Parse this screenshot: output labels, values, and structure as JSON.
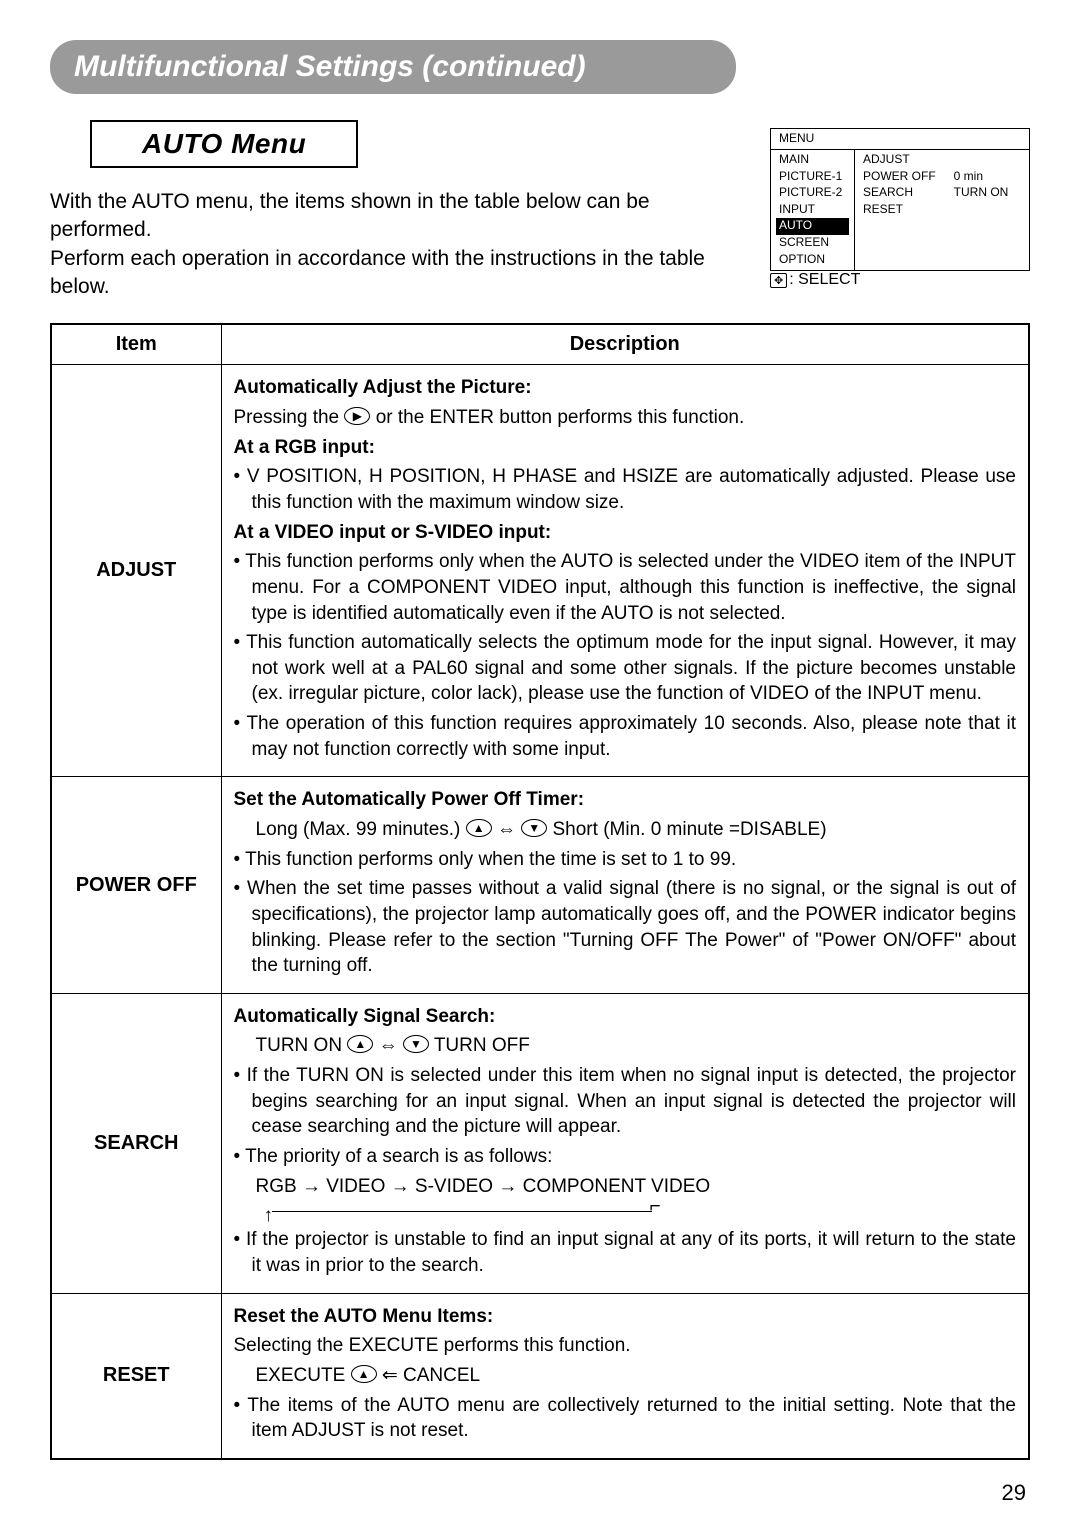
{
  "banner_title": "Multifunctional Settings (continued)",
  "section_title": "AUTO Menu",
  "intro_p1": "With the AUTO menu, the items shown in the table below can be performed.",
  "intro_p2": "Perform each operation in accordance with the instructions in the table below.",
  "menu_diagram": {
    "header": "MENU",
    "left_items": [
      "MAIN",
      "PICTURE-1",
      "PICTURE-2",
      "INPUT",
      "AUTO",
      "SCREEN",
      "OPTION"
    ],
    "left_selected_index": 4,
    "right_col1": [
      "ADJUST",
      "POWER OFF",
      "SEARCH",
      "RESET"
    ],
    "right_col2": [
      "",
      "0 min",
      "TURN ON",
      ""
    ],
    "footer_icon": "✥",
    "footer_text": ": SELECT"
  },
  "table": {
    "headers": [
      "Item",
      "Description"
    ],
    "rows": [
      {
        "item": "ADJUST",
        "title": "Automatically Adjust the Picture:",
        "line1_pre": "Pressing the ",
        "line1_btn": "▶",
        "line1_post": " or the ENTER button performs this function.",
        "sub1_title": "At a RGB input:",
        "sub1_bullet": "V POSITION, H POSITION, H PHASE and HSIZE are automatically adjusted. Please use this function with the maximum window size.",
        "sub2_title": "At a VIDEO input or S-VIDEO input:",
        "sub2_b1": "This function performs only when the AUTO is selected under the VIDEO item of the INPUT menu. For a COMPONENT VIDEO input, although this function is ineffective, the signal type is identified automatically even if the AUTO is not selected.",
        "sub2_b2": "This function automatically selects the optimum mode for the input signal. However, it may not work well at a PAL60 signal and some other signals. If the picture becomes unstable (ex. irregular picture, color lack), please use the function of VIDEO of the INPUT menu.",
        "sub2_b3": "The operation of this function requires approximately 10 seconds. Also, please note that it may not function correctly with some input."
      },
      {
        "item": "POWER OFF",
        "title": "Set the Automatically Power Off Timer:",
        "slider_pre": "Long (Max. 99 minutes.) ",
        "slider_btn_up": "▲",
        "slider_sep": " ⇔ ",
        "slider_btn_dn": "▼",
        "slider_post": " Short (Min. 0 minute =DISABLE)",
        "b1": "This function performs only when the time is set to 1 to 99.",
        "b2": "When the set time passes without a valid signal (there is no signal, or the signal is out of specifications), the projector lamp automatically goes off, and the POWER indicator begins blinking. Please refer to the section \"Turning OFF The Power\" of \"Power ON/OFF\" about the turning off."
      },
      {
        "item": "SEARCH",
        "title": "Automatically Signal Search:",
        "toggle_pre": "TURN ON ",
        "toggle_btn_up": "▲",
        "toggle_sep": " ⇔ ",
        "toggle_btn_dn": "▼",
        "toggle_post": " TURN OFF",
        "b1": "If the TURN ON is selected under this item when no signal input is detected, the projector begins searching for an input signal. When an input signal is detected the projector will cease searching and the picture will appear.",
        "b2_lead": "The priority of a search is as follows:",
        "priority_chain": "RGB → VIDEO → S-VIDEO → COMPONENT VIDEO",
        "b3": "If the projector is unstable to find an input signal at any of its ports, it will return to the state it was in prior to the search."
      },
      {
        "item": "RESET",
        "title": "Reset the AUTO Menu Items:",
        "line1": "Selecting the EXECUTE performs this function.",
        "exec_pre": "EXECUTE ",
        "exec_btn": "▲",
        "exec_mid": " ⇐ CANCEL",
        "b1": "The items of the AUTO menu are collectively returned to the initial setting. Note that the item ADJUST is not reset."
      }
    ]
  },
  "page_number": "29"
}
